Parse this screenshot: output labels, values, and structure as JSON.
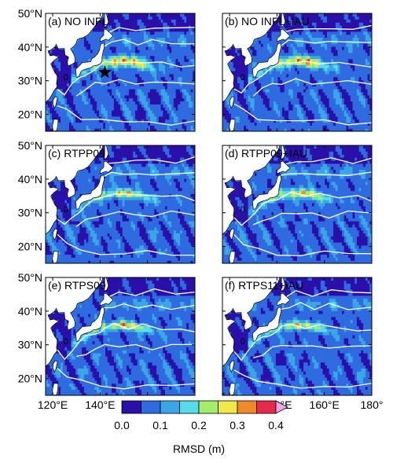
{
  "chart_data": {
    "type": "heatmap",
    "panels": [
      {
        "label": "(a) NO INFL",
        "jet_peak": 0.36,
        "jet_width": 1.0,
        "star": {
          "lon": 142,
          "lat": 32.5
        }
      },
      {
        "label": "(b) NO INFL+IAU",
        "jet_peak": 0.35,
        "jet_width": 1.0
      },
      {
        "label": "(c) RTPP09",
        "jet_peak": 0.3,
        "jet_width": 0.85
      },
      {
        "label": "(d) RTPP09+IAU",
        "jet_peak": 0.31,
        "jet_width": 0.9
      },
      {
        "label": "(e) RTPS09",
        "jet_peak": 0.32,
        "jet_width": 0.8
      },
      {
        "label": "(f) RTPS11+IAU",
        "jet_peak": 0.3,
        "jet_width": 0.8
      }
    ],
    "lon_range": [
      117,
      180
    ],
    "lat_range": [
      15,
      50
    ],
    "x_ticks": [
      "120°E",
      "140°E",
      "160°E",
      "180°"
    ],
    "x_tick_values": [
      120,
      140,
      160,
      180
    ],
    "y_ticks": [
      "50°N",
      "40°N",
      "30°N",
      "20°N"
    ],
    "y_tick_values": [
      50,
      40,
      30,
      20
    ],
    "contour_label": "0",
    "colorbar": {
      "label": "RMSD (m)",
      "ticks": [
        "0.0",
        "0.1",
        "0.2",
        "0.3",
        "0.4"
      ],
      "tick_values": [
        0.0,
        0.1,
        0.2,
        0.3,
        0.4
      ],
      "levels": [
        0.0,
        0.05,
        0.1,
        0.15,
        0.2,
        0.25,
        0.3,
        0.35,
        0.4
      ],
      "colors": [
        "#2a10a8",
        "#2f6be0",
        "#3aa6e6",
        "#57dcea",
        "#a6ec6b",
        "#f1e84a",
        "#ef8a2a",
        "#e52a4a",
        "#f2a6e8"
      ],
      "extend": "max"
    },
    "colors": {
      "land": "#ffffff",
      "coast": "#000000",
      "contour": "#ffffff"
    }
  }
}
